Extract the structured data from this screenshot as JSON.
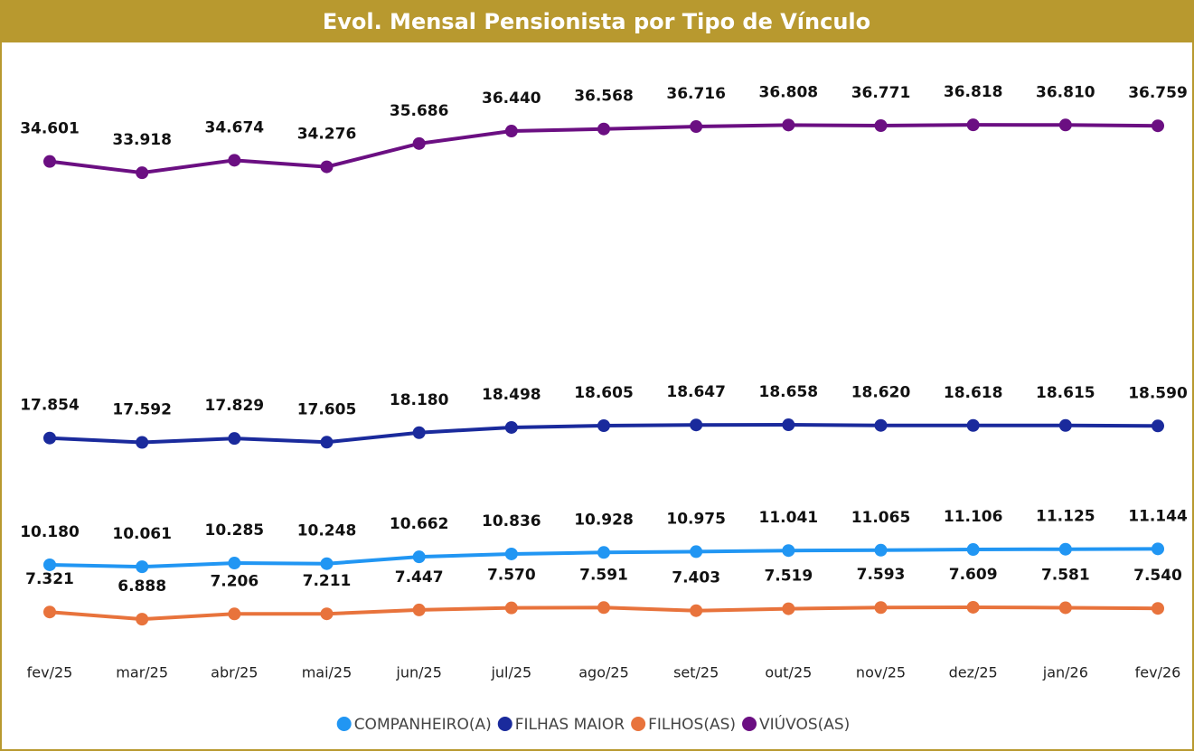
{
  "chart_data": {
    "type": "line",
    "title": "Evol. Mensal Pensionista por Tipo de Vínculo",
    "categories": [
      "fev/25",
      "mar/25",
      "abr/25",
      "mai/25",
      "jun/25",
      "jul/25",
      "ago/25",
      "set/25",
      "out/25",
      "nov/25",
      "dez/25",
      "jan/26",
      "fev/26"
    ],
    "ylim": [
      0,
      40000
    ],
    "series": [
      {
        "name": "COMPANHEIRO(A)",
        "color": "#2196f3",
        "values": [
          10180,
          10061,
          10285,
          10248,
          10662,
          10836,
          10928,
          10975,
          11041,
          11065,
          11106,
          11125,
          11144
        ],
        "value_labels": [
          "10.180",
          "10.061",
          "10.285",
          "10.248",
          "10.662",
          "10.836",
          "10.928",
          "10.975",
          "11.041",
          "11.065",
          "11.106",
          "11.125",
          "11.144"
        ]
      },
      {
        "name": "FILHAS MAIOR",
        "color": "#1a2a9c",
        "values": [
          17854,
          17592,
          17829,
          17605,
          18180,
          18498,
          18605,
          18647,
          18658,
          18620,
          18618,
          18615,
          18590
        ],
        "value_labels": [
          "17.854",
          "17.592",
          "17.829",
          "17.605",
          "18.180",
          "18.498",
          "18.605",
          "18.647",
          "18.658",
          "18.620",
          "18.618",
          "18.615",
          "18.590"
        ]
      },
      {
        "name": "FILHOS(AS)",
        "color": "#e8733c",
        "values": [
          7321,
          6888,
          7206,
          7211,
          7447,
          7570,
          7591,
          7403,
          7519,
          7593,
          7609,
          7581,
          7540
        ],
        "value_labels": [
          "7.321",
          "6.888",
          "7.206",
          "7.211",
          "7.447",
          "7.570",
          "7.591",
          "7.403",
          "7.519",
          "7.593",
          "7.609",
          "7.581",
          "7.540"
        ]
      },
      {
        "name": "VIÚVOS(AS)",
        "color": "#6b0f82",
        "values": [
          34601,
          33918,
          34674,
          34276,
          35686,
          36440,
          36568,
          36716,
          36808,
          36771,
          36818,
          36810,
          36759
        ],
        "value_labels": [
          "34.601",
          "33.918",
          "34.674",
          "34.276",
          "35.686",
          "36.440",
          "36.568",
          "36.716",
          "36.808",
          "36.771",
          "36.818",
          "36.810",
          "36.759"
        ]
      }
    ]
  }
}
